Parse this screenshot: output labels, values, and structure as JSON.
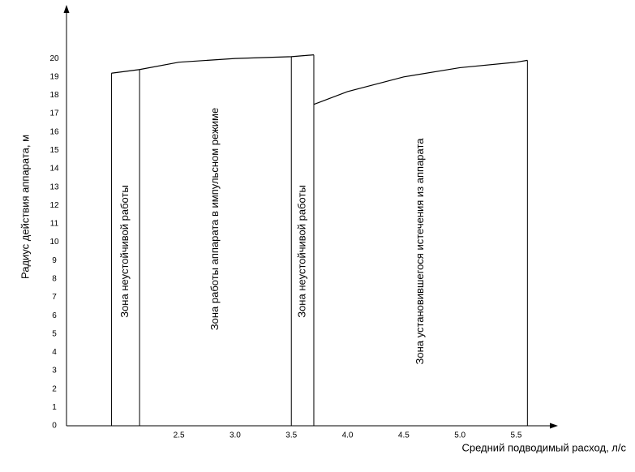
{
  "chart_data": {
    "type": "zones",
    "y_label": "Радиус действия аппарата, м",
    "x_label": "Средний подводимый расход, л/с",
    "xlim": [
      1.5,
      5.85
    ],
    "ylim": [
      0,
      22.7
    ],
    "xticks": [
      2.5,
      {
        "value": 3,
        "label": "3.0"
      },
      3.5,
      {
        "value": 4,
        "label": "4.0"
      },
      4.5,
      {
        "value": 5,
        "label": "5.0"
      },
      5.5
    ],
    "yticks": [
      0,
      1,
      2,
      3,
      4,
      5,
      6,
      7,
      8,
      9,
      10,
      11,
      12,
      13,
      14,
      15,
      16,
      17,
      18,
      19,
      20
    ],
    "series": [
      {
        "x": [
          1.9,
          2.15,
          2.5,
          3.0,
          3.5,
          3.7
        ],
        "values": [
          19.2,
          19.4,
          19.8,
          20.0,
          20.1,
          20.2
        ],
        "color": "#000000"
      },
      {
        "x": [
          3.7,
          4.0,
          4.5,
          5.0,
          5.5,
          5.6
        ],
        "values": [
          17.5,
          18.2,
          19.0,
          19.5,
          19.8,
          19.9
        ],
        "color": "#000000"
      }
    ],
    "boundaries": [
      {
        "x": 1.9,
        "top": 19.2
      },
      {
        "x": 2.15,
        "top": 19.4
      },
      {
        "x": 3.5,
        "top": 20.1
      },
      {
        "x": 3.7,
        "top": 20.2
      },
      {
        "x": 5.6,
        "top": 19.9
      }
    ],
    "zones": [
      "Зона неустойчивой работы",
      "Зона работы аппарата в импульсном режиме",
      "Зона неустойчивой работы",
      "Зона установившегося истечения из аппарата"
    ]
  }
}
